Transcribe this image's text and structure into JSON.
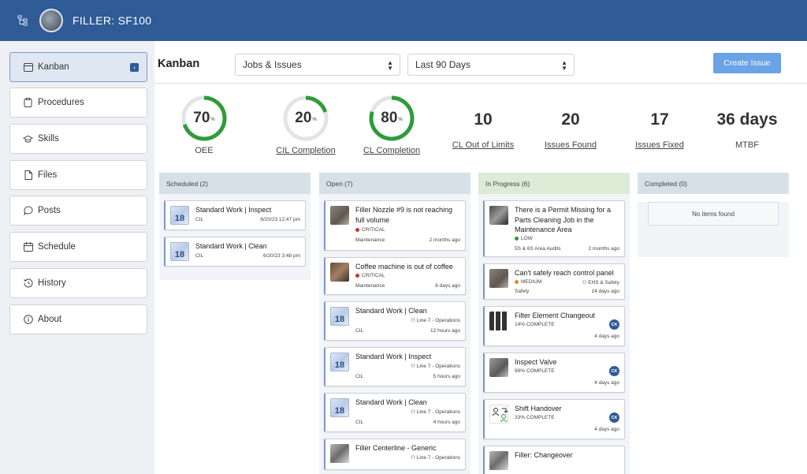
{
  "header": {
    "title": "FILLER: SF100",
    "tree_icon": "tree-structure-icon",
    "avatar": "avatar"
  },
  "sidebar": {
    "items": [
      {
        "label": "Kanban",
        "icon": "kanban-icon",
        "active": true
      },
      {
        "label": "Procedures",
        "icon": "clipboard-icon"
      },
      {
        "label": "Skills",
        "icon": "graduation-cap-icon"
      },
      {
        "label": "Files",
        "icon": "file-icon"
      },
      {
        "label": "Posts",
        "icon": "chat-bubble-icon"
      },
      {
        "label": "Schedule",
        "icon": "calendar-icon"
      },
      {
        "label": "History",
        "icon": "history-icon"
      },
      {
        "label": "About",
        "icon": "info-icon"
      }
    ]
  },
  "main": {
    "title": "Kanban",
    "filter_type": "Jobs & Issues",
    "filter_range": "Last 90 Days",
    "create_button": "Create Issue"
  },
  "metrics": {
    "oee": {
      "value": "70",
      "unit": "%",
      "label": "OEE",
      "percent": 70
    },
    "cil": {
      "value": "20",
      "unit": "%",
      "label": "CIL Completion",
      "percent": 20
    },
    "cl": {
      "value": "80",
      "unit": "%",
      "label": "CL Completion",
      "percent": 80
    },
    "out_of_limits": {
      "value": "10",
      "label": "CL Out of Limits"
    },
    "issues_found": {
      "value": "20",
      "label": "Issues Found"
    },
    "issues_fixed": {
      "value": "17",
      "label": "Issues Fixed"
    },
    "mtbf": {
      "value": "36 days",
      "label": "MTBF"
    }
  },
  "columns": {
    "scheduled": {
      "header": "Scheduled (2)",
      "cards": [
        {
          "title": "Standard Work | Inspect",
          "tag": "CIL",
          "time": "6/20/23 12:47 pm",
          "thumb": "18"
        },
        {
          "title": "Standard Work | Clean",
          "tag": "CIL",
          "time": "6/20/23 3:48 pm",
          "thumb": "18"
        }
      ]
    },
    "open": {
      "header": "Open (7)",
      "cards": [
        {
          "title1": "Filler Nozzle #9 is not reaching",
          "title2": "full volume",
          "priority": "CRITICAL",
          "category": "Maintenance",
          "time": "2 months ago"
        },
        {
          "title1": "Coffee machine is out of coffee",
          "priority": "CRITICAL",
          "category": "Maintenance",
          "time": "8 days ago"
        },
        {
          "title1": "Standard Work | Clean",
          "team": "Line 7 - Operations",
          "tag": "CIL",
          "time": "12 hours ago",
          "thumb": "18"
        },
        {
          "title1": "Standard Work | Inspect",
          "team": "Line 7 - Operations",
          "tag": "CIL",
          "time": "5 hours ago",
          "thumb": "18"
        },
        {
          "title1": "Standard Work | Clean",
          "team": "Line 7 - Operations",
          "tag": "CIL",
          "time": "4 hours ago",
          "thumb": "18"
        },
        {
          "title1": "Filler Centerline - Generic",
          "team": "Line 7 - Operations"
        }
      ]
    },
    "in_progress": {
      "header": "In Progress (6)",
      "cards": [
        {
          "title1": "There is a Permit Missing for a",
          "title2": "Parts Cleaning Job in the",
          "title3": "Maintenance Area",
          "priority": "LOW",
          "category": "5S & 6S Area Audits",
          "time": "2 months ago"
        },
        {
          "title1": "Can't safely reach control panel",
          "priority": "MEDIUM",
          "team": "EHS & Safety",
          "category": "Safety",
          "time": "14 days ago"
        },
        {
          "title1": "Filter Element Changeout",
          "progress": "14% COMPLETE",
          "time": "4 days ago",
          "badge": "CK"
        },
        {
          "title1": "Inspect Valve",
          "progress": "99% COMPLETE",
          "time": "4 days ago",
          "badge": "CK"
        },
        {
          "title1": "Shift Handover",
          "progress": "33% COMPLETE",
          "time": "4 days ago",
          "badge": "CK"
        },
        {
          "title1": "Filler: Changeover"
        }
      ]
    },
    "completed": {
      "header": "Completed (0)",
      "empty": "No items found"
    }
  },
  "colors": {
    "topbar": "#2f5b96",
    "accent": "#2f9b3a",
    "critical": "#c0392b",
    "low": "#2f9b3a",
    "medium": "#e08a2c",
    "in_progress_header": "#dcebd6",
    "header_default": "#d6e1e7"
  }
}
